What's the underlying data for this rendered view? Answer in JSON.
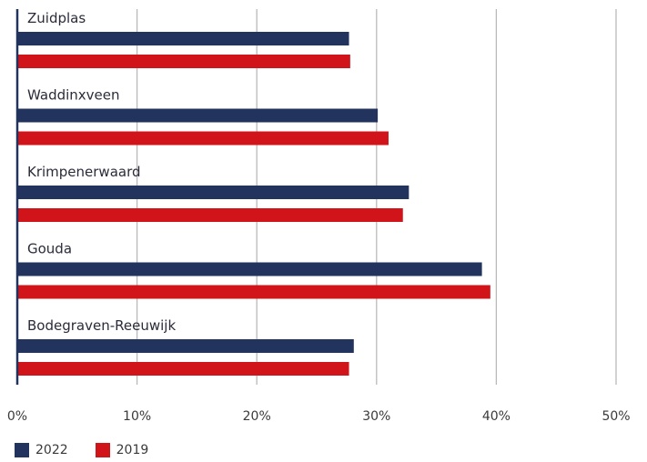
{
  "chart_data": {
    "type": "bar",
    "orientation": "horizontal",
    "categories": [
      "Zuidplas",
      "Waddinxveen",
      "Krimpenerwaard",
      "Gouda",
      "Bodegraven-Reeuwijk"
    ],
    "series": [
      {
        "name": "2022",
        "color": "#22335e",
        "values": [
          27.7,
          30.1,
          32.7,
          38.8,
          28.1
        ]
      },
      {
        "name": "2019",
        "color": "#d0141a",
        "values": [
          27.8,
          31.0,
          32.2,
          39.5,
          27.7
        ]
      }
    ],
    "x_ticks": [
      "0%",
      "10%",
      "20%",
      "30%",
      "40%",
      "50%"
    ],
    "xlim": [
      0,
      50
    ],
    "grid": true,
    "legend_position": "bottom-left"
  }
}
